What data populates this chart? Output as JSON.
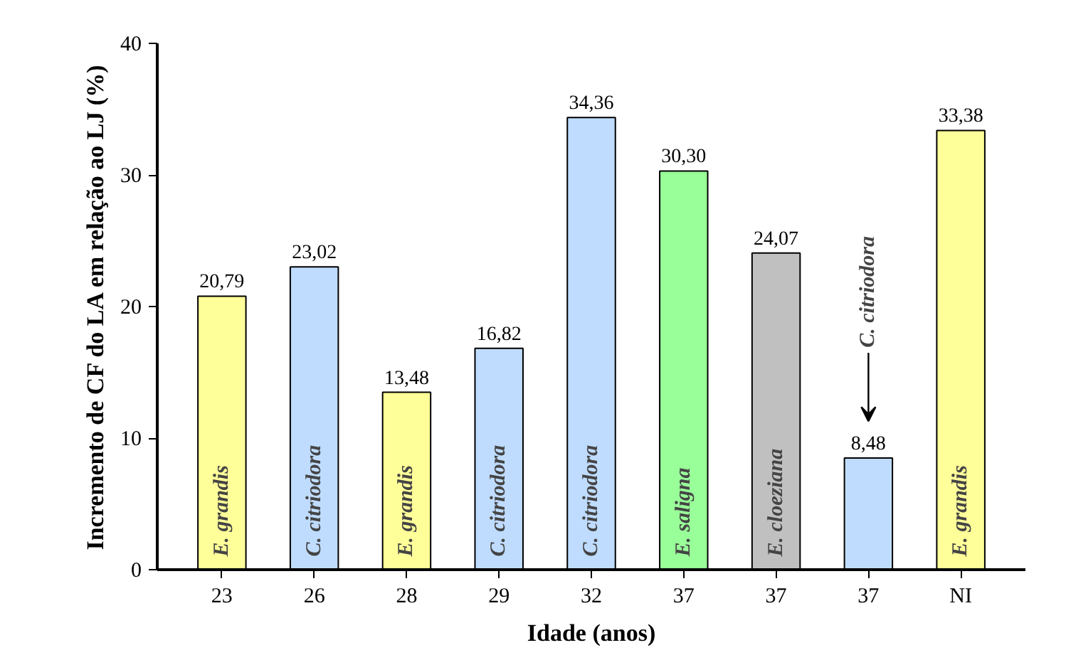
{
  "chart_data": {
    "type": "bar",
    "xlabel": "Idade (anos)",
    "ylabel": "Incremento de CF do LA em relação ao LJ (%)",
    "categories": [
      "23",
      "26",
      "28",
      "29",
      "32",
      "37",
      "37",
      "37",
      "NI"
    ],
    "values": [
      20.79,
      23.02,
      13.48,
      16.82,
      34.36,
      30.3,
      24.07,
      8.48,
      33.38
    ],
    "value_labels": [
      "20,79",
      "23,02",
      "13,48",
      "16,82",
      "34,36",
      "30,30",
      "24,07",
      "8,48",
      "33,38"
    ],
    "colors": [
      "#ffff99",
      "#bfdcff",
      "#ffff99",
      "#bfdcff",
      "#bfdcff",
      "#99ff99",
      "#c0c0c0",
      "#bfdcff",
      "#ffff99"
    ],
    "ylim": [
      0,
      40
    ],
    "yticks": [
      0,
      10,
      20,
      30,
      40
    ],
    "grid": false,
    "annotations": [
      "E. grandis",
      "C. citriodora",
      "E. grandis",
      "C. citriodora",
      "C. citriodora",
      "E. saligna",
      "E. cloeziana",
      "C. citriodora",
      "E. grandis"
    ]
  }
}
